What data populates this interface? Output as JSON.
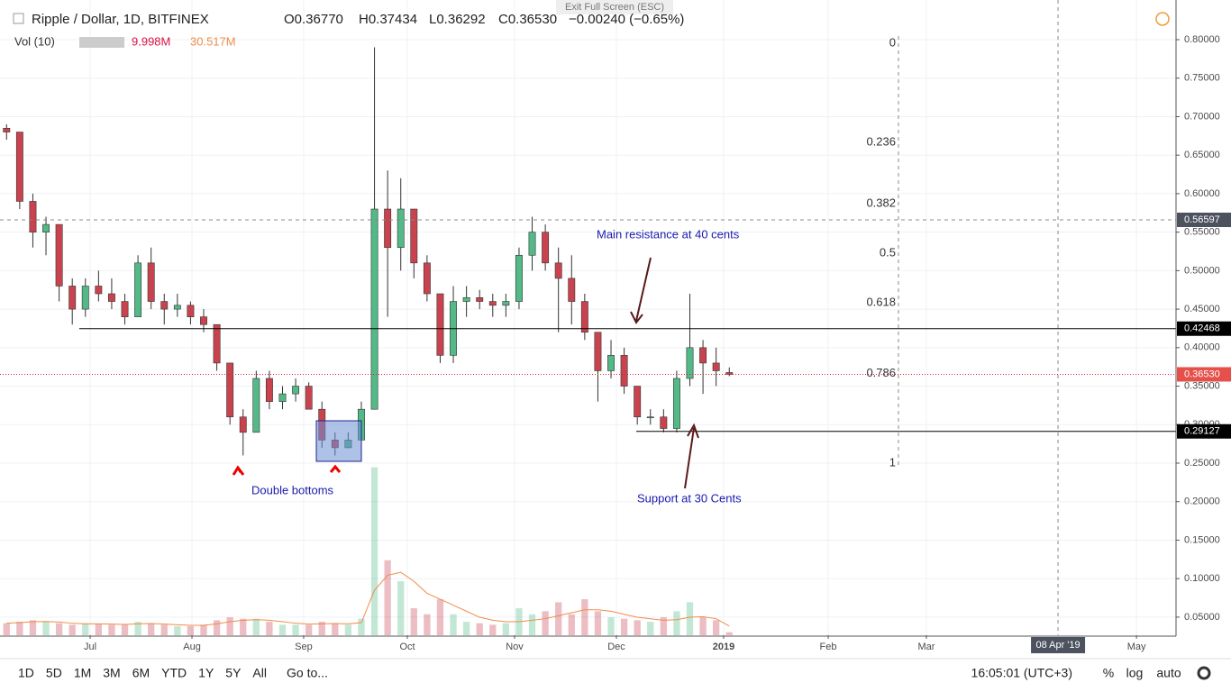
{
  "chart_data": {
    "type": "candlestick",
    "title": "Ripple / Dollar, 1D, BITFINEX",
    "ohlc_header": [
      "O0.36770",
      "H0.37434",
      "L0.36292",
      "C0.36530",
      "−0.00240 (−0.65%)"
    ],
    "volume_header": {
      "name": "Vol (10)",
      "value": "9.998M",
      "ma": "30.517M"
    },
    "tooltip": "Exit Full Screen (ESC)",
    "categories": [
      null,
      null,
      null,
      null,
      null,
      null,
      null,
      null,
      null,
      null,
      null,
      null,
      null,
      null,
      null,
      null,
      null,
      null,
      null,
      null,
      null,
      null,
      null,
      null,
      null,
      null,
      null,
      null,
      null,
      null,
      null,
      null,
      null,
      null,
      null,
      null,
      null,
      null,
      null,
      null,
      null,
      null,
      null,
      null,
      null,
      null,
      null,
      null,
      null,
      null,
      null,
      null,
      null,
      null,
      null,
      null
    ],
    "open": [
      0.685,
      0.68,
      0.59,
      0.55,
      0.56,
      0.48,
      0.45,
      0.48,
      0.47,
      0.46,
      0.44,
      0.51,
      0.46,
      0.45,
      0.455,
      0.44,
      0.43,
      0.38,
      0.31,
      0.29,
      0.36,
      0.33,
      0.34,
      0.35,
      0.32,
      0.28,
      0.27,
      0.28,
      0.32,
      0.58,
      0.53,
      0.58,
      0.51,
      0.47,
      0.39,
      0.46,
      0.465,
      0.46,
      0.455,
      0.46,
      0.52,
      0.55,
      0.51,
      0.49,
      0.46,
      0.42,
      0.37,
      0.39,
      0.35,
      0.31,
      0.31,
      0.295,
      0.36,
      0.4,
      0.38,
      0.3677
    ],
    "high": [
      0.69,
      0.68,
      0.6,
      0.57,
      0.56,
      0.49,
      0.49,
      0.5,
      0.49,
      0.47,
      0.52,
      0.53,
      0.47,
      0.47,
      0.46,
      0.45,
      0.43,
      0.38,
      0.32,
      0.37,
      0.37,
      0.35,
      0.36,
      0.355,
      0.33,
      0.29,
      0.29,
      0.33,
      0.79,
      0.63,
      0.62,
      0.58,
      0.52,
      0.47,
      0.48,
      0.48,
      0.475,
      0.47,
      0.47,
      0.53,
      0.57,
      0.56,
      0.53,
      0.52,
      0.47,
      0.42,
      0.41,
      0.4,
      0.35,
      0.32,
      0.32,
      0.37,
      0.47,
      0.41,
      0.4,
      0.37434
    ],
    "low": [
      0.67,
      0.58,
      0.53,
      0.52,
      0.46,
      0.43,
      0.44,
      0.46,
      0.45,
      0.43,
      0.44,
      0.45,
      0.43,
      0.44,
      0.43,
      0.42,
      0.37,
      0.3,
      0.26,
      0.29,
      0.32,
      0.32,
      0.33,
      0.32,
      0.27,
      0.26,
      0.27,
      0.27,
      0.32,
      0.44,
      0.5,
      0.49,
      0.46,
      0.38,
      0.38,
      0.44,
      0.45,
      0.44,
      0.44,
      0.45,
      0.5,
      0.5,
      0.42,
      0.43,
      0.41,
      0.33,
      0.36,
      0.34,
      0.3,
      0.3,
      0.29,
      0.29,
      0.35,
      0.34,
      0.35,
      0.36292
    ],
    "close": [
      0.68,
      0.59,
      0.55,
      0.56,
      0.48,
      0.45,
      0.48,
      0.47,
      0.46,
      0.44,
      0.51,
      0.46,
      0.45,
      0.455,
      0.44,
      0.43,
      0.38,
      0.31,
      0.29,
      0.36,
      0.33,
      0.34,
      0.35,
      0.32,
      0.28,
      0.27,
      0.28,
      0.32,
      0.58,
      0.53,
      0.58,
      0.51,
      0.47,
      0.39,
      0.46,
      0.465,
      0.46,
      0.455,
      0.46,
      0.52,
      0.55,
      0.51,
      0.49,
      0.46,
      0.42,
      0.37,
      0.39,
      0.35,
      0.31,
      0.31,
      0.295,
      0.36,
      0.4,
      0.38,
      0.37,
      0.3653
    ],
    "volume": [
      40,
      45,
      50,
      45,
      40,
      35,
      40,
      38,
      35,
      35,
      45,
      40,
      35,
      30,
      30,
      35,
      50,
      60,
      55,
      55,
      45,
      35,
      35,
      35,
      45,
      40,
      35,
      55,
      560,
      250,
      180,
      90,
      70,
      120,
      70,
      45,
      40,
      35,
      40,
      90,
      70,
      80,
      110,
      70,
      120,
      80,
      60,
      55,
      50,
      45,
      60,
      80,
      110,
      60,
      50,
      9.998
    ],
    "volume_ma": [
      40,
      42,
      45,
      46,
      44,
      40,
      38,
      38,
      37,
      36,
      38,
      39,
      37,
      35,
      33,
      33,
      38,
      45,
      50,
      52,
      50,
      45,
      40,
      37,
      38,
      39,
      38,
      42,
      150,
      200,
      210,
      180,
      140,
      120,
      100,
      80,
      60,
      50,
      45,
      45,
      50,
      55,
      65,
      75,
      85,
      85,
      80,
      70,
      60,
      55,
      50,
      52,
      60,
      62,
      55,
      30.517
    ],
    "up_color": "#53b987",
    "down_color": "#c9434f",
    "volume_ma_color": "#f08c4a",
    "xlim": [
      -0.5,
      89
    ],
    "xticks": [
      {
        "value": 6.36,
        "label": "Jul"
      },
      {
        "value": 14.11,
        "label": "Aug"
      },
      {
        "value": 22.61,
        "label": "Sep"
      },
      {
        "value": 30.5,
        "label": "Oct"
      },
      {
        "value": 38.66,
        "label": "Nov"
      },
      {
        "value": 46.41,
        "label": "Dec"
      },
      {
        "value": 54.57,
        "label": "2019"
      },
      {
        "value": 62.53,
        "label": "Feb"
      },
      {
        "value": 70.0,
        "label": "Mar"
      },
      {
        "value": 85.99,
        "label": "May"
      }
    ],
    "ylim": [
      0.0265,
      0.8515
    ],
    "yticks": [
      {
        "value": 0.05,
        "label": "0.05000"
      },
      {
        "value": 0.1,
        "label": "0.10000"
      },
      {
        "value": 0.15,
        "label": "0.15000"
      },
      {
        "value": 0.2,
        "label": "0.20000"
      },
      {
        "value": 0.25,
        "label": "0.25000"
      },
      {
        "value": 0.3,
        "label": "0.30000"
      },
      {
        "value": 0.35,
        "label": "0.35000"
      },
      {
        "value": 0.4,
        "label": "0.40000"
      },
      {
        "value": 0.45,
        "label": "0.45000"
      },
      {
        "value": 0.5,
        "label": "0.50000"
      },
      {
        "value": 0.55,
        "label": "0.55000"
      },
      {
        "value": 0.6,
        "label": "0.60000"
      },
      {
        "value": 0.65,
        "label": "0.65000"
      },
      {
        "value": 0.7,
        "label": "0.70000"
      },
      {
        "value": 0.75,
        "label": "0.75000"
      },
      {
        "value": 0.8,
        "label": "0.80000"
      }
    ],
    "volume_lim": [
      0,
      700
    ],
    "grid": true,
    "fib": {
      "levels": [
        0,
        0.236,
        0.382,
        0.5,
        0.618,
        0.786,
        1
      ],
      "top": 0.795,
      "bottom": 0.25
    },
    "resistance": 0.42468,
    "support": 0.29127,
    "last_price": {
      "value": 0.3653,
      "label": "0.36530"
    },
    "crosshair": {
      "price": 0.56597,
      "x": {
        "value": 80.02,
        "label": "08 Apr '19"
      }
    },
    "annotations": [
      "Main resistance at 40 cents",
      "Support at 30 Cents",
      "Double bottoms"
    ],
    "toolbar": {
      "ranges": [
        "1D",
        "5D",
        "1M",
        "3M",
        "6M",
        "YTD",
        "1Y",
        "5Y",
        "All"
      ],
      "goto": "Go to...",
      "time": "16:05:01 (UTC+3)",
      "options": [
        "%",
        "log",
        "auto"
      ]
    }
  }
}
